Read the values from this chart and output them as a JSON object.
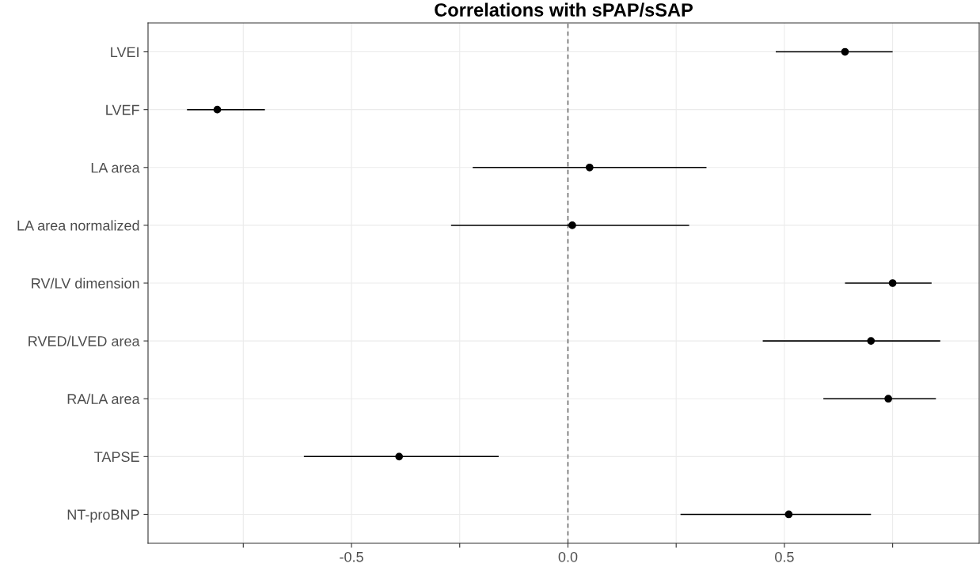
{
  "chart_data": {
    "type": "scatter",
    "title": "Correlations with sPAP/sSAP",
    "orientation": "horizontal",
    "categories": [
      "LVEI",
      "LVEF",
      "LA area",
      "LA area normalized",
      "RV/LV dimension",
      "RVED/LVED area",
      "RA/LA area",
      "TAPSE",
      "NT-proBNP"
    ],
    "values": [
      0.64,
      -0.81,
      0.05,
      0.01,
      0.75,
      0.7,
      0.74,
      -0.39,
      0.51
    ],
    "errors": [
      [
        0.48,
        0.75
      ],
      [
        -0.88,
        -0.7
      ],
      [
        -0.22,
        0.32
      ],
      [
        -0.27,
        0.28
      ],
      [
        0.64,
        0.84
      ],
      [
        0.45,
        0.86
      ],
      [
        0.59,
        0.85
      ],
      [
        -0.61,
        -0.16
      ],
      [
        0.26,
        0.7
      ]
    ],
    "color": "#000000",
    "marker": "circle",
    "xlim": [
      -0.97,
      0.95
    ],
    "xticks": [
      {
        "value": -0.75,
        "label": null
      },
      -0.5,
      {
        "value": -0.25,
        "label": null
      },
      {
        "value": 0.0,
        "label": "0.0"
      },
      {
        "value": 0.25,
        "label": null
      },
      0.5,
      {
        "value": 0.75,
        "label": null
      }
    ],
    "ref_lines": [
      {
        "axis": "x",
        "value": 0,
        "line_style": "dashed",
        "color": "#555555"
      }
    ],
    "grid": true,
    "legend": false
  }
}
